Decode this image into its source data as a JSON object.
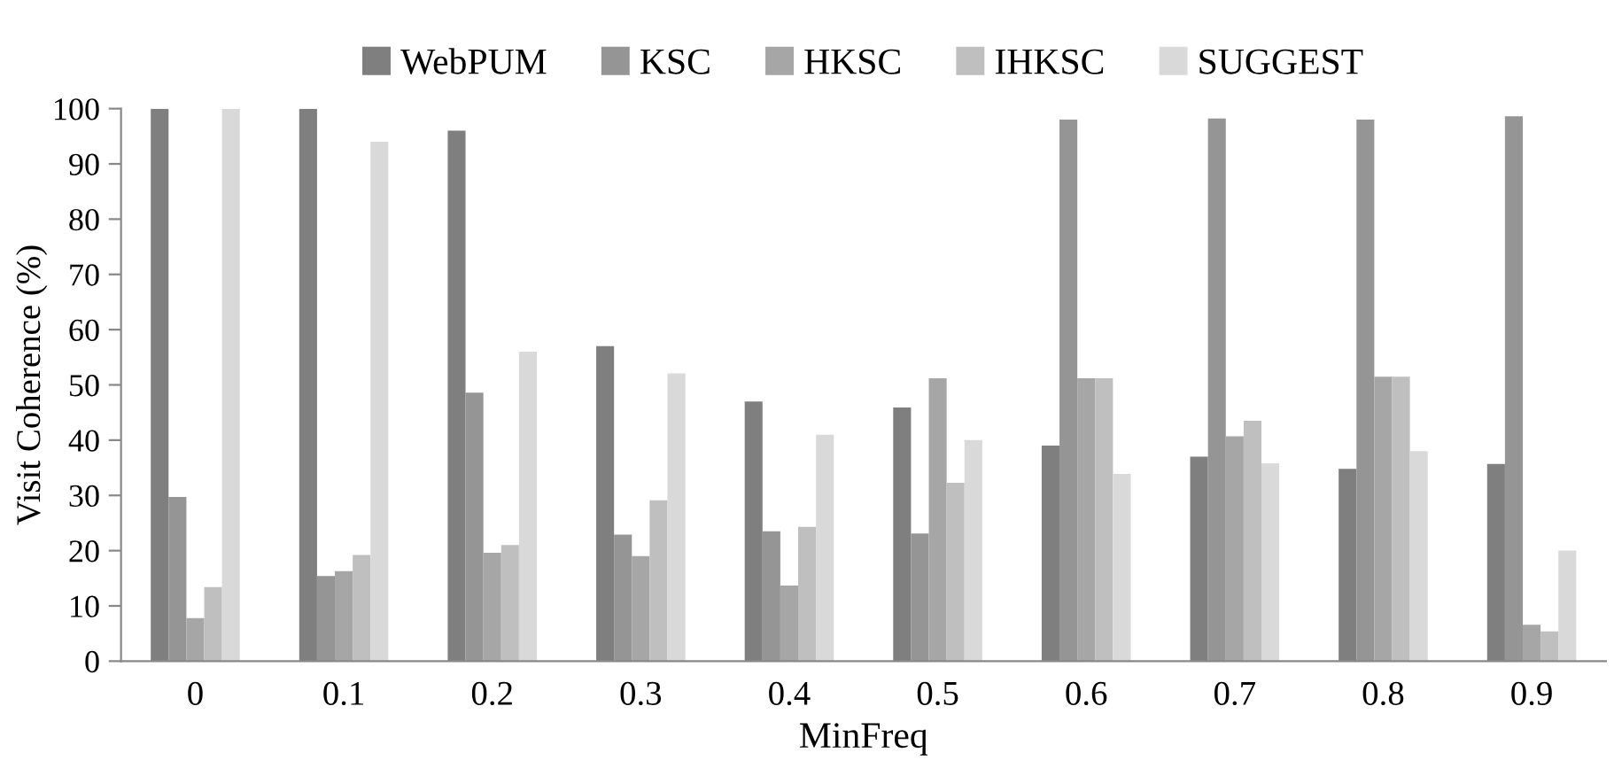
{
  "chart_data": {
    "type": "bar",
    "xlabel": "MinFreq",
    "ylabel": "Visit Coherence (%)",
    "categories": [
      "0",
      "0.1",
      "0.2",
      "0.3",
      "0.4",
      "0.5",
      "0.6",
      "0.7",
      "0.8",
      "0.9"
    ],
    "series": [
      {
        "name": "WebPUM",
        "color": "#7f7f7f",
        "values": [
          100,
          100,
          96,
          57,
          47,
          45.9,
          39,
          37,
          34.8,
          35.7
        ]
      },
      {
        "name": "KSC",
        "color": "#959595",
        "values": [
          29.7,
          15.4,
          48.6,
          22.9,
          23.5,
          23.1,
          98,
          98.2,
          98,
          98.6
        ]
      },
      {
        "name": "HKSC",
        "color": "#a6a6a6",
        "values": [
          7.8,
          16.3,
          19.6,
          19,
          13.7,
          51.2,
          51.2,
          40.7,
          51.5,
          6.6
        ]
      },
      {
        "name": "IHKSC",
        "color": "#bfbfbf",
        "values": [
          13.4,
          19.2,
          21,
          29.1,
          24.3,
          32.3,
          51.2,
          43.5,
          51.5,
          5.4
        ]
      },
      {
        "name": "SUGGEST",
        "color": "#d9d9d9",
        "values": [
          100,
          94,
          56,
          52.1,
          41,
          40,
          33.9,
          35.8,
          38,
          20
        ]
      }
    ],
    "ylim": [
      0,
      100
    ],
    "yticks": [
      0,
      10,
      20,
      30,
      40,
      50,
      60,
      70,
      80,
      90,
      100
    ],
    "grid": false,
    "legend": "top"
  }
}
